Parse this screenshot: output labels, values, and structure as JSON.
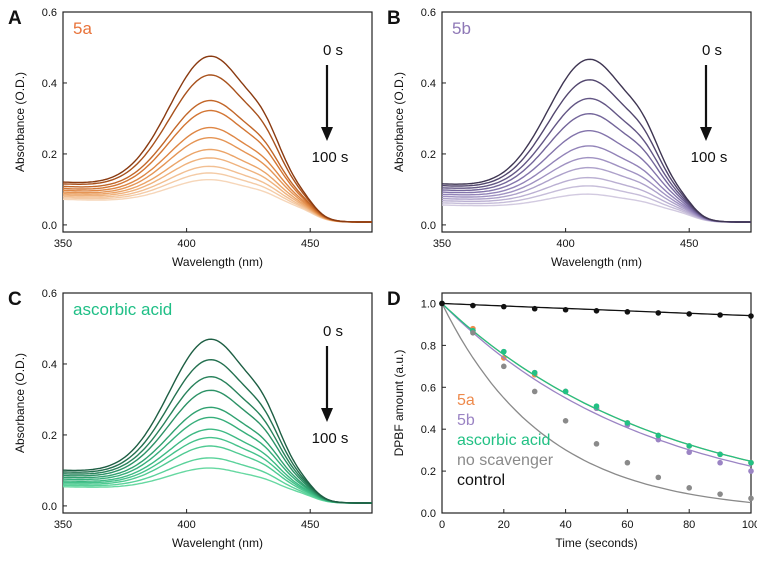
{
  "chart_data": [
    {
      "panel": "A",
      "type": "line",
      "title": "",
      "label": "5a",
      "label_color": "#e8733a",
      "xlabel": "Wavelength (nm)",
      "ylabel": "Absorbance (O.D.)",
      "xlim": [
        350,
        475
      ],
      "ylim": [
        -0.02,
        0.6
      ],
      "xticks": [
        350,
        400,
        450
      ],
      "yticks": [
        0.0,
        0.2,
        0.4,
        0.6
      ],
      "ytick_labels": [
        "0.0",
        "0.2",
        "0.4",
        "0.6"
      ],
      "annotation_top": "0 s",
      "annotation_bottom": "100 s",
      "colors": [
        "#8a3a10",
        "#a8511c",
        "#c26628",
        "#d37634",
        "#de8644",
        "#e59555",
        "#eba468",
        "#efb27d",
        "#f2bf92",
        "#f4cba6",
        "#f6d6b9"
      ],
      "series": [
        {
          "name": "0 s",
          "peak": 0.51,
          "base": 0.12
        },
        {
          "name": "10 s",
          "peak": 0.455,
          "base": 0.115
        },
        {
          "name": "20 s",
          "peak": 0.38,
          "base": 0.108
        },
        {
          "name": "30 s",
          "peak": 0.35,
          "base": 0.102
        },
        {
          "name": "40 s",
          "peak": 0.3,
          "base": 0.097
        },
        {
          "name": "50 s",
          "peak": 0.27,
          "base": 0.092
        },
        {
          "name": "60 s",
          "peak": 0.235,
          "base": 0.088
        },
        {
          "name": "70 s",
          "peak": 0.21,
          "base": 0.084
        },
        {
          "name": "80 s",
          "peak": 0.185,
          "base": 0.08
        },
        {
          "name": "90 s",
          "peak": 0.165,
          "base": 0.076
        },
        {
          "name": "100 s",
          "peak": 0.145,
          "base": 0.072
        }
      ]
    },
    {
      "panel": "B",
      "type": "line",
      "title": "",
      "label": "5b",
      "label_color": "#8e78b6",
      "xlabel": "Wavelength (nm)",
      "ylabel": "Absorbance (O.D.)",
      "xlim": [
        350,
        475
      ],
      "ylim": [
        -0.02,
        0.6
      ],
      "xticks": [
        350,
        400,
        450
      ],
      "yticks": [
        0.0,
        0.2,
        0.4,
        0.6
      ],
      "ytick_labels": [
        "0.0",
        "0.2",
        "0.4",
        "0.6"
      ],
      "annotation_top": "0 s",
      "annotation_bottom": "100 s",
      "colors": [
        "#3e3552",
        "#52466e",
        "#635685",
        "#73659a",
        "#8374ab",
        "#9283b8",
        "#a092c2",
        "#ada1ca",
        "#baafd2",
        "#c6bdd9",
        "#d2cae0"
      ],
      "series": [
        {
          "name": "0 s",
          "peak": 0.5,
          "base": 0.115
        },
        {
          "name": "10 s",
          "peak": 0.44,
          "base": 0.11
        },
        {
          "name": "20 s",
          "peak": 0.385,
          "base": 0.104
        },
        {
          "name": "30 s",
          "peak": 0.34,
          "base": 0.098
        },
        {
          "name": "40 s",
          "peak": 0.29,
          "base": 0.092
        },
        {
          "name": "50 s",
          "peak": 0.245,
          "base": 0.086
        },
        {
          "name": "60 s",
          "peak": 0.21,
          "base": 0.08
        },
        {
          "name": "70 s",
          "peak": 0.18,
          "base": 0.074
        },
        {
          "name": "80 s",
          "peak": 0.15,
          "base": 0.068
        },
        {
          "name": "90 s",
          "peak": 0.125,
          "base": 0.062
        },
        {
          "name": "100 s",
          "peak": 0.1,
          "base": 0.056
        }
      ]
    },
    {
      "panel": "C",
      "type": "line",
      "title": "",
      "label": "ascorbic acid",
      "label_color": "#1fbf86",
      "xlabel": "Wavelenght (nm)",
      "ylabel": "Absorbance (O.D.)",
      "xlim": [
        350,
        475
      ],
      "ylim": [
        -0.02,
        0.6
      ],
      "xticks": [
        350,
        400,
        450
      ],
      "yticks": [
        0.0,
        0.2,
        0.4,
        0.6
      ],
      "ytick_labels": [
        "0.0",
        "0.2",
        "0.4",
        "0.6"
      ],
      "annotation_top": "0 s",
      "annotation_bottom": "100 s",
      "colors": [
        "#1d5e43",
        "#23704f",
        "#28825b",
        "#2c9266",
        "#30a170",
        "#36ae7a",
        "#3db983",
        "#45c28b",
        "#4fca92",
        "#5ad29a",
        "#66d8a1"
      ],
      "series": [
        {
          "name": "0 s",
          "peak": 0.5,
          "base": 0.1
        },
        {
          "name": "10 s",
          "peak": 0.44,
          "base": 0.095
        },
        {
          "name": "20 s",
          "peak": 0.39,
          "base": 0.09
        },
        {
          "name": "30 s",
          "peak": 0.35,
          "base": 0.085
        },
        {
          "name": "40 s",
          "peak": 0.3,
          "base": 0.08
        },
        {
          "name": "50 s",
          "peak": 0.27,
          "base": 0.075
        },
        {
          "name": "60 s",
          "peak": 0.235,
          "base": 0.07
        },
        {
          "name": "70 s",
          "peak": 0.21,
          "base": 0.066
        },
        {
          "name": "80 s",
          "peak": 0.185,
          "base": 0.062
        },
        {
          "name": "90 s",
          "peak": 0.15,
          "base": 0.058
        },
        {
          "name": "100 s",
          "peak": 0.12,
          "base": 0.054
        }
      ]
    },
    {
      "panel": "D",
      "type": "scatter",
      "title": "",
      "xlabel": "Time (seconds)",
      "ylabel": "DPBF amount (a.u.)",
      "xlim": [
        0,
        100
      ],
      "ylim": [
        0.0,
        1.05
      ],
      "xticks": [
        0,
        20,
        40,
        60,
        80,
        100
      ],
      "yticks": [
        0.0,
        0.2,
        0.4,
        0.6,
        0.8,
        1.0
      ],
      "ytick_labels": [
        "0.0",
        "0.2",
        "0.4",
        "0.6",
        "0.8",
        "1.0"
      ],
      "x": [
        0,
        10,
        20,
        30,
        40,
        50,
        60,
        70,
        80,
        90,
        100
      ],
      "series": [
        {
          "name": "5a",
          "color": "#ee8a4c",
          "values": [
            1.0,
            0.88,
            0.74,
            0.66,
            0.58,
            0.5,
            0.43,
            0.37,
            0.32,
            0.28,
            0.24
          ],
          "fit_k": 0.014
        },
        {
          "name": "5b",
          "color": "#9b84c4",
          "values": [
            1.0,
            0.87,
            0.77,
            0.67,
            0.58,
            0.5,
            0.42,
            0.35,
            0.29,
            0.24,
            0.2
          ],
          "fit_k": 0.015
        },
        {
          "name": "ascorbic acid",
          "color": "#22c184",
          "values": [
            1.0,
            0.87,
            0.77,
            0.67,
            0.58,
            0.51,
            0.43,
            0.37,
            0.32,
            0.28,
            0.24
          ],
          "fit_k": 0.014
        },
        {
          "name": "no scavenger",
          "color": "#8a8a8a",
          "values": [
            1.0,
            0.86,
            0.7,
            0.58,
            0.44,
            0.33,
            0.24,
            0.17,
            0.12,
            0.09,
            0.07
          ],
          "fit_k": 0.03
        },
        {
          "name": "control",
          "color": "#111111",
          "values": [
            1.0,
            0.99,
            0.985,
            0.975,
            0.97,
            0.965,
            0.96,
            0.955,
            0.95,
            0.945,
            0.94
          ],
          "fit_k": 0.0006
        }
      ]
    }
  ]
}
